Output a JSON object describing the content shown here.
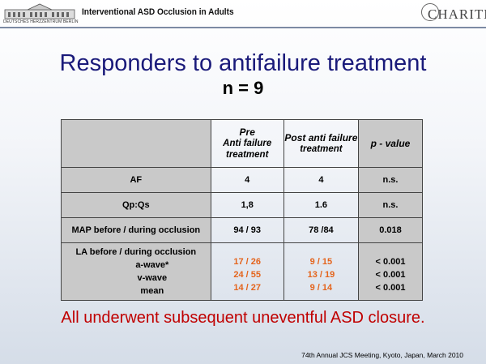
{
  "header": {
    "logo_left_caption": "DEUTSCHES HERZZENTRUM BERLIN",
    "title": "Interventional ASD Occlusion in Adults",
    "logo_right": "CHARITÉ"
  },
  "slide": {
    "title": "Responders to antifailure treatment",
    "subtitle": "n = 9"
  },
  "table": {
    "columns": [
      {
        "line1": "",
        "line2": ""
      },
      {
        "line1": "Pre",
        "line2": "Anti failure treatment"
      },
      {
        "line1": "Post anti failure",
        "line2": "treatment"
      },
      {
        "line1": "p - value",
        "line2": ""
      }
    ],
    "rows": [
      {
        "label": "AF",
        "pre": "4",
        "post": "4",
        "p": "n.s."
      },
      {
        "label": "Qp:Qs",
        "pre": "1,8",
        "post": "1.6",
        "p": "n.s."
      },
      {
        "label": "MAP before / during occlusion",
        "pre": "94 / 93",
        "post": "78 /84",
        "p": "0.018"
      }
    ],
    "la_row": {
      "label": "LA before / during occlusion",
      "sub_labels": [
        "a-wave*",
        "v-wave",
        "mean"
      ],
      "pre": [
        "17 / 26",
        "24 / 55",
        "14 / 27"
      ],
      "post": [
        "9 / 15",
        "13 / 19",
        "9 / 14"
      ],
      "p": [
        "< 0.001",
        "< 0.001",
        "< 0.001"
      ],
      "highlight_color": "#e4641c"
    }
  },
  "conclusion": "All underwent subsequent uneventful ASD closure.",
  "footer": "74th Annual JCS Meeting, Kyoto, Japan, March 2010"
}
